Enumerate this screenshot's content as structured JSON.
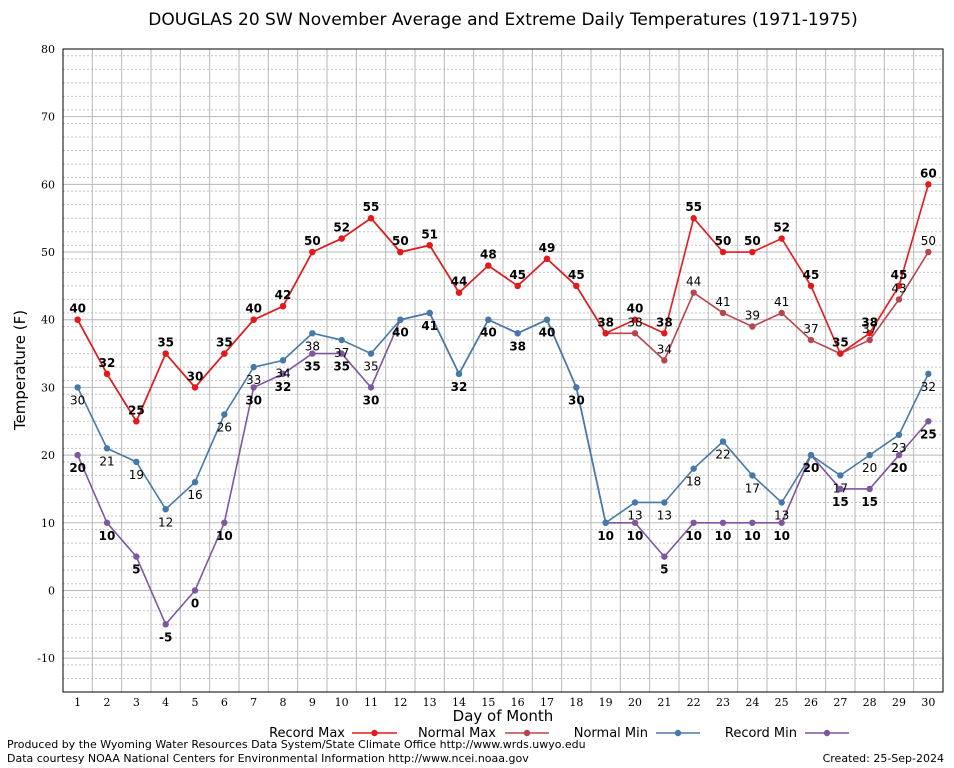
{
  "chart_data": {
    "type": "line",
    "title": "DOUGLAS 20 SW November Average and Extreme Daily Temperatures (1971-1975)",
    "xlabel": "Day of Month",
    "ylabel": "Temperature (F)",
    "xlim": [
      0.5,
      30.5
    ],
    "ylim": [
      -15,
      80
    ],
    "yticks": [
      -10,
      0,
      10,
      20,
      30,
      40,
      50,
      60,
      70,
      80
    ],
    "x": [
      1,
      2,
      3,
      4,
      5,
      6,
      7,
      8,
      9,
      10,
      11,
      12,
      13,
      14,
      15,
      16,
      17,
      18,
      19,
      20,
      21,
      22,
      23,
      24,
      25,
      26,
      27,
      28,
      29,
      30
    ],
    "grid": true,
    "legend_position": "bottom",
    "series": [
      {
        "name": "Record Max",
        "color": "#e31a1c",
        "values": [
          40,
          32,
          25,
          35,
          30,
          35,
          40,
          42,
          50,
          52,
          55,
          50,
          51,
          44,
          48,
          45,
          49,
          45,
          38,
          40,
          38,
          55,
          50,
          50,
          52,
          45,
          35,
          38,
          45,
          60
        ]
      },
      {
        "name": "Normal Max",
        "color": "#b8454b",
        "values": [
          40,
          32,
          25,
          35,
          30,
          35,
          40,
          42,
          50,
          52,
          55,
          50,
          51,
          44,
          48,
          45,
          49,
          45,
          38,
          38,
          34,
          44,
          41,
          39,
          41,
          37,
          35,
          37,
          43,
          50
        ]
      },
      {
        "name": "Normal Min",
        "color": "#4679a8",
        "values": [
          30,
          21,
          19,
          12,
          16,
          26,
          33,
          34,
          38,
          37,
          35,
          40,
          41,
          32,
          40,
          38,
          40,
          30,
          10,
          13,
          13,
          18,
          22,
          17,
          13,
          20,
          17,
          20,
          23,
          32
        ]
      },
      {
        "name": "Record Min",
        "color": "#7f56a0",
        "values": [
          20,
          10,
          5,
          -5,
          0,
          10,
          30,
          32,
          35,
          35,
          30,
          40,
          41,
          32,
          40,
          38,
          40,
          30,
          10,
          10,
          5,
          10,
          10,
          10,
          10,
          20,
          15,
          15,
          20,
          25
        ]
      }
    ]
  },
  "footer": {
    "produced_by": "Produced by the Wyoming Water Resources Data System/State Climate Office http://www.wrds.uwyo.edu",
    "courtesy": "Data courtesy NOAA National Centers for Environmental Information http://www.ncei.noaa.gov",
    "created": "Created: 25-Sep-2024"
  }
}
